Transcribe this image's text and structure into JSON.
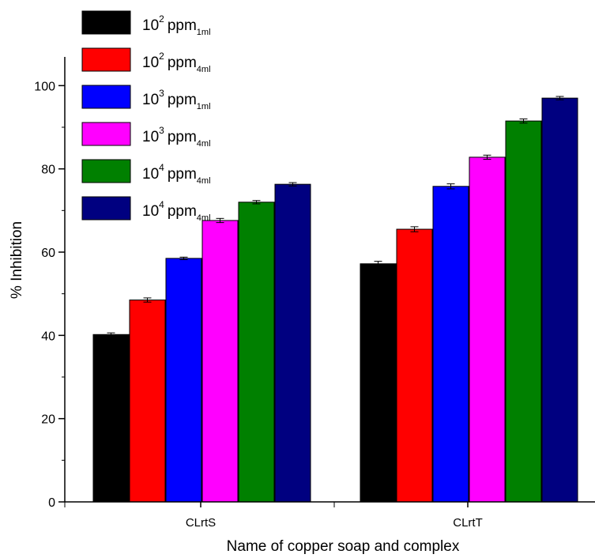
{
  "chart_data": {
    "type": "bar",
    "title": "",
    "xlabel": "Name of copper soap and complex",
    "ylabel": "% Inhibition",
    "ylim": [
      0,
      105
    ],
    "yticks": [
      0,
      20,
      40,
      60,
      80,
      100
    ],
    "grid": false,
    "legend_position": "top-left",
    "categories": [
      "CLrtS",
      "CLrtT"
    ],
    "series": [
      {
        "base": "10",
        "exp": "2",
        "unit": "ppm",
        "sub": "1ml",
        "color": "#000000",
        "values": [
          40.2,
          57.2
        ],
        "errors": [
          0.4,
          0.6
        ]
      },
      {
        "base": "10",
        "exp": "2",
        "unit": "ppm",
        "sub": "4ml",
        "color": "#ff0000",
        "values": [
          48.5,
          65.5
        ],
        "errors": [
          0.5,
          0.6
        ]
      },
      {
        "base": "10",
        "exp": "3",
        "unit": "ppm",
        "sub": "1ml",
        "color": "#0000ff",
        "values": [
          58.5,
          75.8
        ],
        "errors": [
          0.3,
          0.6
        ]
      },
      {
        "base": "10",
        "exp": "3",
        "unit": "ppm",
        "sub": "4ml",
        "color": "#ff00ff",
        "values": [
          67.6,
          82.8
        ],
        "errors": [
          0.5,
          0.5
        ]
      },
      {
        "base": "10",
        "exp": "4",
        "unit": "ppm",
        "sub": "4ml",
        "color": "#008000",
        "values": [
          72.0,
          91.5
        ],
        "errors": [
          0.4,
          0.5
        ]
      },
      {
        "base": "10",
        "exp": "4",
        "unit": "ppm",
        "sub": "4ml",
        "color": "#000080",
        "values": [
          76.3,
          97.0
        ],
        "errors": [
          0.4,
          0.4
        ]
      }
    ]
  }
}
